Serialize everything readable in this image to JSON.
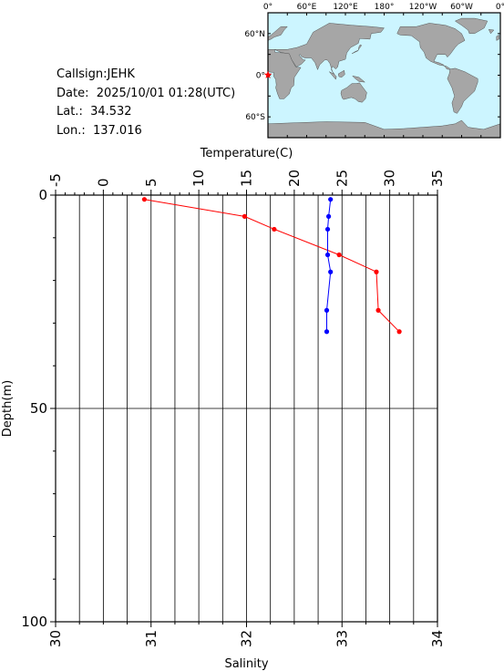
{
  "info": {
    "callsign": "Callsign:JEHK",
    "date": "Date:  2025/10/01 01:28(UTC)",
    "lat": "Lat.:  34.532",
    "lon": "Lon.:  137.016"
  },
  "map": {
    "top_labels": [
      "0°",
      "60°E",
      "120°E",
      "180°",
      "120°W",
      "60°W",
      "0°"
    ],
    "left_labels": [
      "60°N",
      "0°",
      "60°S"
    ],
    "ocean_color": "#ccf5ff",
    "land_color": "#a6a6a6",
    "marker_color": "#ff0000",
    "marker_symbol": "star-icon"
  },
  "chart_data": {
    "type": "line",
    "top_axis_label": "Temperature(C)",
    "bottom_axis_label": "Salinity",
    "left_axis_label": "Depth(m)",
    "temperature_ticks": [
      -5,
      0,
      5,
      10,
      15,
      20,
      25,
      30,
      35
    ],
    "salinity_ticks": [
      30,
      31,
      32,
      33,
      34
    ],
    "depth_ticks": [
      0,
      50,
      100
    ],
    "xlim_temperature": [
      -5,
      35
    ],
    "xlim_salinity": [
      30,
      34
    ],
    "ylim_depth": [
      0,
      100
    ],
    "series": [
      {
        "color": "#ff0000",
        "axis": "temperature",
        "points": [
          [
            4.3,
            1
          ],
          [
            14.8,
            5
          ],
          [
            17.9,
            8
          ],
          [
            24.7,
            14
          ],
          [
            28.6,
            18
          ],
          [
            28.8,
            27
          ],
          [
            31.0,
            32
          ]
        ]
      },
      {
        "color": "#0000ff",
        "axis": "salinity",
        "points": [
          [
            32.88,
            1
          ],
          [
            32.86,
            5
          ],
          [
            32.85,
            8
          ],
          [
            32.85,
            14
          ],
          [
            32.88,
            18
          ],
          [
            32.84,
            27
          ],
          [
            32.84,
            32
          ]
        ]
      }
    ]
  }
}
